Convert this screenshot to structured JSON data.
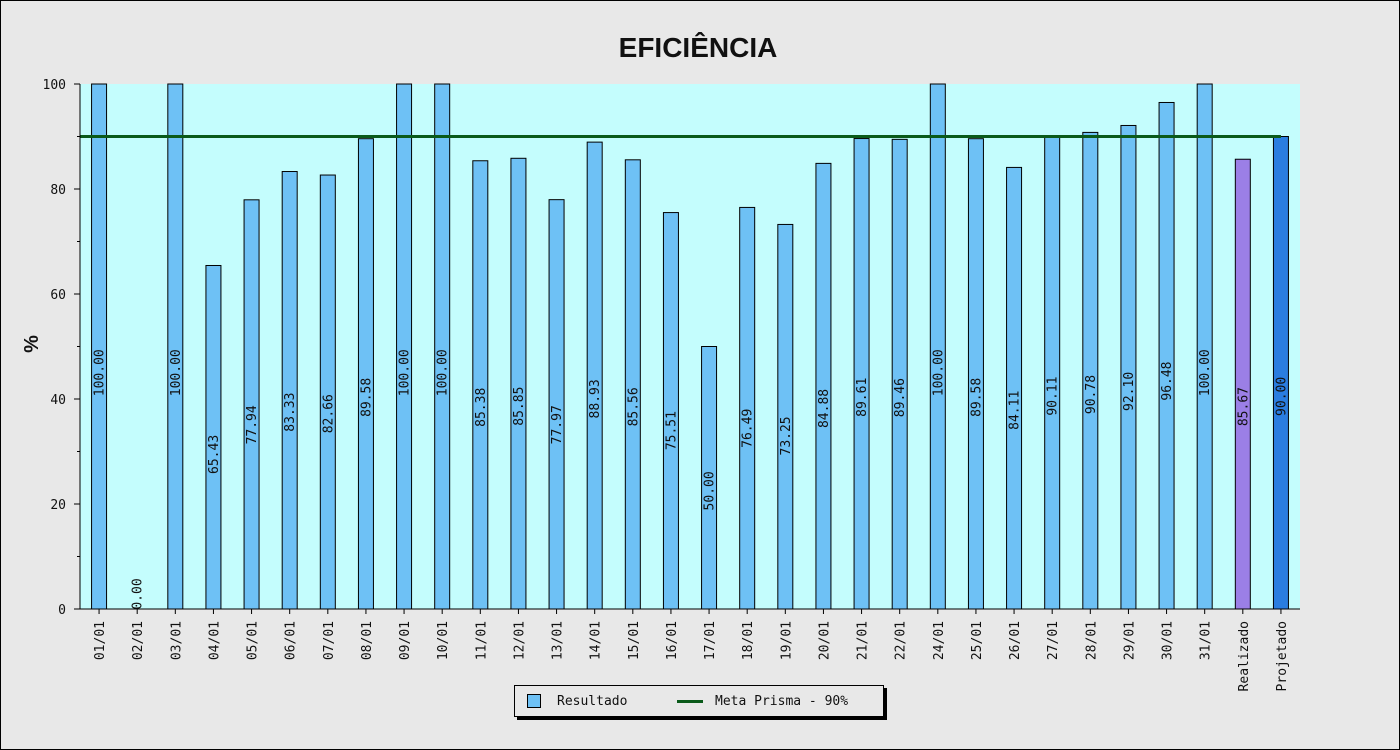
{
  "chart_data": {
    "type": "bar",
    "title": "EFICIÊNCIA",
    "ylabel": "%",
    "xlabel": "",
    "ylim": [
      0,
      100
    ],
    "yticks": [
      0,
      20,
      40,
      60,
      80,
      100
    ],
    "categories": [
      "01/01",
      "02/01",
      "03/01",
      "04/01",
      "05/01",
      "06/01",
      "07/01",
      "08/01",
      "09/01",
      "10/01",
      "11/01",
      "12/01",
      "13/01",
      "14/01",
      "15/01",
      "16/01",
      "17/01",
      "18/01",
      "19/01",
      "20/01",
      "21/01",
      "22/01",
      "24/01",
      "25/01",
      "26/01",
      "27/01",
      "28/01",
      "29/01",
      "30/01",
      "31/01",
      "Realizado",
      "Projetado"
    ],
    "values": [
      100.0,
      0.0,
      100.0,
      65.43,
      77.94,
      83.33,
      82.66,
      89.58,
      100.0,
      100.0,
      85.38,
      85.85,
      77.97,
      88.93,
      85.56,
      75.51,
      50.0,
      76.49,
      73.25,
      84.88,
      89.61,
      89.46,
      100.0,
      89.58,
      84.11,
      90.11,
      90.78,
      92.1,
      96.48,
      100.0,
      85.67,
      90.0
    ],
    "value_labels": [
      "100.00",
      "0.00",
      "100.00",
      "65.43",
      "77.94",
      "83.33",
      "82.66",
      "89.58",
      "100.00",
      "100.00",
      "85.38",
      "85.85",
      "77.97",
      "88.93",
      "85.56",
      "75.51",
      "50.00",
      "76.49",
      "73.25",
      "84.88",
      "89.61",
      "89.46",
      "100.00",
      "89.58",
      "84.11",
      "90.11",
      "90.78",
      "92.10",
      "96.48",
      "100.00",
      "85.67",
      "90.00"
    ],
    "bar_colors": {
      "default": "#6ec1f5",
      "Realizado": "#9b7fe6",
      "Projetado": "#2a7de0"
    },
    "reference_line": {
      "name": "Meta Prisma - 90%",
      "value": 90,
      "color": "#0a5a1a"
    },
    "plot_background": "#c4fdfd",
    "legend": {
      "position": "bottom",
      "items": [
        {
          "label": "Resultado",
          "kind": "box",
          "color": "#6ec1f5"
        },
        {
          "label": "Meta Prisma - 90%",
          "kind": "line",
          "color": "#0a5a1a"
        }
      ]
    },
    "grid": false
  }
}
